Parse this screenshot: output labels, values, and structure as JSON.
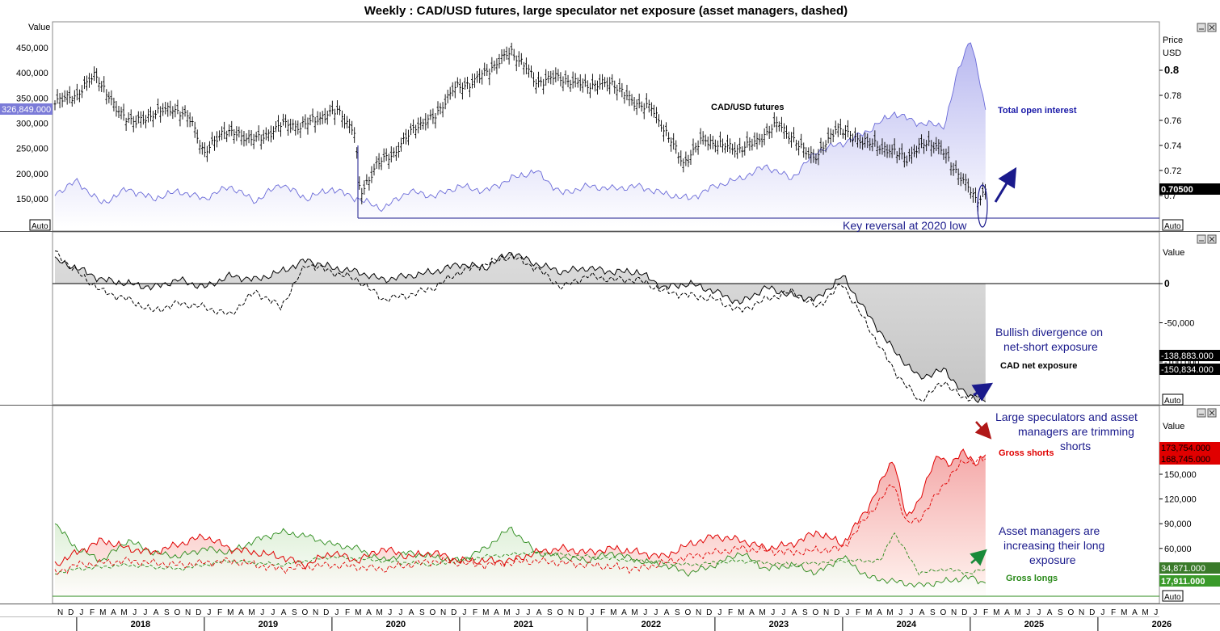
{
  "title": "Weekly : CAD/USD futures, large speculator net exposure (asset managers, dashed)",
  "colors": {
    "price": "#000000",
    "open_interest": "#6a6ad8",
    "open_interest_fill": "#c8c8f4",
    "net_fill": "#c8c8c8",
    "shorts": "#e00000",
    "shorts_fill": "#f7c4c4",
    "longs": "#2a8a1a",
    "longs_fill": "#d8ecd0",
    "annotation": "#1a1a8c",
    "arrow_red": "#b01818",
    "arrow_green": "#1a8a3a",
    "marker_bg": "#7b7bd8"
  },
  "window_icons": [
    "minimize-icon",
    "close-icon"
  ],
  "x_axis": {
    "months": [
      "N",
      "D",
      "J",
      "F",
      "M",
      "A",
      "M",
      "J",
      "J",
      "A",
      "S",
      "O",
      "N",
      "D",
      "J",
      "F",
      "M",
      "A",
      "M",
      "J",
      "J",
      "A",
      "S",
      "O",
      "N",
      "D",
      "J",
      "F",
      "M",
      "A",
      "M",
      "J",
      "J",
      "A",
      "S",
      "O",
      "N",
      "D",
      "J",
      "F",
      "M",
      "A",
      "M",
      "J",
      "J",
      "A",
      "S",
      "O",
      "N",
      "D",
      "J",
      "F",
      "M",
      "A",
      "M",
      "J",
      "J",
      "A",
      "S",
      "O",
      "N",
      "D",
      "J",
      "F",
      "M",
      "A",
      "M",
      "J",
      "J",
      "A",
      "S",
      "O",
      "N",
      "D",
      "J",
      "F",
      "M",
      "A",
      "M",
      "J",
      "J",
      "A",
      "S",
      "O",
      "N",
      "D",
      "J",
      "F",
      "M",
      "A",
      "M",
      "J",
      "J",
      "A",
      "S",
      "O",
      "N",
      "D",
      "J",
      "F",
      "M",
      "A",
      "M",
      "J",
      "J",
      "A",
      "S",
      "O",
      "N",
      "D",
      "J",
      "F",
      "M",
      "A",
      "M",
      "J",
      "J",
      "A",
      "S",
      "O",
      "N",
      "D",
      "J",
      "F",
      "M",
      "A",
      "M",
      "J"
    ],
    "years": [
      "2018",
      "2019",
      "2020",
      "2021",
      "2022",
      "2023",
      "2024",
      "2025",
      "2026"
    ]
  },
  "panel1": {
    "left_axis_title": "Value",
    "left_ticks": [
      "450,000",
      "400,000",
      "350,000",
      "300,000",
      "250,000",
      "200,000",
      "150,000"
    ],
    "left_marker": "326,849.000",
    "right_axis_title_1": "Price",
    "right_axis_title_2": "USD",
    "right_ticks": [
      "0.8",
      "0.78",
      "0.76",
      "0.74",
      "0.72",
      "0.7"
    ],
    "right_marker": "0.70500",
    "auto_left": "Auto",
    "auto_right": "Auto",
    "label_price": "CAD/USD futures",
    "label_oi": "Total open interest",
    "annotation_reversal": "Key reversal at 2020 low"
  },
  "panel2": {
    "right_axis_title": "Value",
    "right_ticks": [
      "0",
      "-50,000",
      "-100,000"
    ],
    "marker_1": "-138,883.000",
    "marker_2": "-150,834.000",
    "auto_right": "Auto",
    "label_net": "CAD net exposure",
    "annotation_1": "Bullish divergence on",
    "annotation_2": "net-short exposure"
  },
  "panel3": {
    "right_axis_title": "Value",
    "right_ticks": [
      "150,000",
      "120,000",
      "90,000",
      "60,000"
    ],
    "marker_shorts_1": "173,754.000",
    "marker_shorts_2": "168,745.000",
    "marker_longs_1": "34,871.000",
    "marker_longs_2": "17,911.000",
    "auto_right": "Auto",
    "label_shorts": "Gross shorts",
    "label_longs": "Gross longs",
    "annotation_shorts_1": "Large speculators and asset",
    "annotation_shorts_2": "managers are trimming",
    "annotation_shorts_3": "shorts",
    "annotation_longs_1": "Asset managers are",
    "annotation_longs_2": "increasing their long",
    "annotation_longs_3": "exposure"
  },
  "chart_data": [
    {
      "type": "line",
      "title": "Weekly : CAD/USD futures, large speculator net exposure (asset managers, dashed)",
      "ylabel": "Price USD",
      "ylim": [
        0.69,
        0.81
      ],
      "series": [
        {
          "name": "CAD/USD futures",
          "style": "ohlc",
          "x": [
            2017.83,
            2018.0,
            2018.15,
            2018.3,
            2018.45,
            2018.6,
            2018.75,
            2018.9,
            2019.0,
            2019.15,
            2019.3,
            2019.45,
            2019.6,
            2019.75,
            2019.9,
            2020.05,
            2020.18,
            2020.22,
            2020.35,
            2020.5,
            2020.65,
            2020.8,
            2020.95,
            2021.1,
            2021.25,
            2021.4,
            2021.5,
            2021.6,
            2021.75,
            2021.9,
            2022.05,
            2022.2,
            2022.35,
            2022.5,
            2022.65,
            2022.75,
            2022.9,
            2023.05,
            2023.2,
            2023.35,
            2023.5,
            2023.65,
            2023.8,
            2023.95,
            2024.05,
            2024.2,
            2024.35,
            2024.5,
            2024.65,
            2024.75,
            2024.85,
            2024.95,
            2025.05,
            2025.12
          ],
          "values": [
            0.775,
            0.78,
            0.797,
            0.77,
            0.758,
            0.765,
            0.77,
            0.76,
            0.733,
            0.752,
            0.747,
            0.745,
            0.757,
            0.755,
            0.762,
            0.768,
            0.75,
            0.7,
            0.725,
            0.735,
            0.755,
            0.762,
            0.785,
            0.79,
            0.802,
            0.815,
            0.805,
            0.79,
            0.795,
            0.79,
            0.788,
            0.79,
            0.775,
            0.77,
            0.745,
            0.725,
            0.745,
            0.74,
            0.737,
            0.745,
            0.758,
            0.74,
            0.73,
            0.755,
            0.748,
            0.742,
            0.737,
            0.73,
            0.742,
            0.74,
            0.725,
            0.712,
            0.695,
            0.705
          ]
        },
        {
          "name": "Total open interest",
          "x": [
            2017.83,
            2018.0,
            2018.2,
            2018.4,
            2018.6,
            2018.8,
            2019.0,
            2019.2,
            2019.4,
            2019.6,
            2019.8,
            2020.0,
            2020.2,
            2020.4,
            2020.6,
            2020.8,
            2021.0,
            2021.2,
            2021.4,
            2021.6,
            2021.8,
            2022.0,
            2022.2,
            2022.4,
            2022.6,
            2022.8,
            2023.0,
            2023.2,
            2023.4,
            2023.6,
            2023.8,
            2024.0,
            2024.2,
            2024.4,
            2024.6,
            2024.8,
            2024.9,
            2025.0,
            2025.12
          ],
          "values": [
            160000,
            185000,
            140000,
            170000,
            150000,
            165000,
            150000,
            175000,
            145000,
            180000,
            150000,
            170000,
            150000,
            130000,
            165000,
            155000,
            175000,
            165000,
            190000,
            205000,
            160000,
            175000,
            170000,
            175000,
            160000,
            150000,
            175000,
            190000,
            215000,
            190000,
            245000,
            260000,
            285000,
            320000,
            300000,
            295000,
            400000,
            470000,
            326849
          ]
        }
      ]
    },
    {
      "type": "area",
      "title": "CAD net exposure",
      "ylabel": "Value",
      "ylim": [
        -170000,
        60000
      ],
      "series": [
        {
          "name": "CAD net exposure",
          "x": [
            2017.83,
            2018.0,
            2018.2,
            2018.4,
            2018.6,
            2018.8,
            2019.0,
            2019.2,
            2019.4,
            2019.6,
            2019.8,
            2020.0,
            2020.2,
            2020.4,
            2020.6,
            2020.8,
            2021.0,
            2021.2,
            2021.4,
            2021.6,
            2021.8,
            2022.0,
            2022.2,
            2022.4,
            2022.6,
            2022.8,
            2023.0,
            2023.2,
            2023.4,
            2023.6,
            2023.8,
            2024.0,
            2024.2,
            2024.4,
            2024.6,
            2024.8,
            2024.95,
            2025.12
          ],
          "values": [
            40000,
            15000,
            -10000,
            -20000,
            -35000,
            -25000,
            -30000,
            -40000,
            -10000,
            -30000,
            25000,
            15000,
            5000,
            -20000,
            -15000,
            -5000,
            15000,
            25000,
            35000,
            20000,
            -5000,
            10000,
            5000,
            5000,
            -10000,
            -15000,
            -20000,
            -35000,
            -20000,
            -10000,
            -30000,
            0,
            -55000,
            -110000,
            -150000,
            -125000,
            -148000,
            -138883
          ]
        },
        {
          "name": "Asset managers",
          "style": "dashed",
          "x": [
            2017.83,
            2018.0,
            2018.2,
            2018.4,
            2018.6,
            2018.8,
            2019.0,
            2019.2,
            2019.4,
            2019.6,
            2019.8,
            2020.0,
            2020.2,
            2020.4,
            2020.6,
            2020.8,
            2021.0,
            2021.2,
            2021.4,
            2021.6,
            2021.8,
            2022.0,
            2022.2,
            2022.4,
            2022.6,
            2022.8,
            2023.0,
            2023.2,
            2023.4,
            2023.6,
            2023.8,
            2024.0,
            2024.2,
            2024.4,
            2024.6,
            2024.8,
            2024.95,
            2025.12
          ],
          "values": [
            30000,
            20000,
            5000,
            0,
            -5000,
            5000,
            -5000,
            10000,
            5000,
            15000,
            30000,
            20000,
            15000,
            5000,
            10000,
            15000,
            25000,
            20000,
            40000,
            25000,
            15000,
            20000,
            15000,
            15000,
            -5000,
            0,
            -10000,
            -25000,
            -5000,
            -15000,
            -20000,
            10000,
            -40000,
            -85000,
            -120000,
            -110000,
            -140000,
            -150834
          ]
        }
      ]
    },
    {
      "type": "area",
      "title": "Gross shorts / Gross longs",
      "ylabel": "Value",
      "ylim": [
        0,
        190000
      ],
      "series": [
        {
          "name": "Gross shorts",
          "x": [
            2017.83,
            2018.0,
            2018.2,
            2018.4,
            2018.6,
            2018.8,
            2019.0,
            2019.2,
            2019.4,
            2019.6,
            2019.8,
            2020.0,
            2020.2,
            2020.4,
            2020.6,
            2020.8,
            2021.0,
            2021.2,
            2021.4,
            2021.6,
            2021.8,
            2022.0,
            2022.2,
            2022.4,
            2022.6,
            2022.8,
            2023.0,
            2023.2,
            2023.4,
            2023.6,
            2023.8,
            2024.0,
            2024.2,
            2024.4,
            2024.5,
            2024.6,
            2024.75,
            2024.85,
            2024.95,
            2025.05,
            2025.12
          ],
          "values": [
            40000,
            55000,
            70000,
            60000,
            55000,
            65000,
            75000,
            60000,
            55000,
            50000,
            40000,
            55000,
            45000,
            60000,
            50000,
            55000,
            45000,
            45000,
            45000,
            55000,
            60000,
            55000,
            60000,
            55000,
            50000,
            65000,
            75000,
            70000,
            60000,
            65000,
            80000,
            65000,
            110000,
            170000,
            95000,
            120000,
            175000,
            160000,
            180000,
            160000,
            173754
          ]
        },
        {
          "name": "Asset managers (shorts)",
          "style": "dashed",
          "x": [
            2017.83,
            2018.0,
            2018.4,
            2018.8,
            2019.2,
            2019.6,
            2020.0,
            2020.4,
            2020.8,
            2021.2,
            2021.6,
            2022.0,
            2022.4,
            2022.8,
            2023.2,
            2023.6,
            2024.0,
            2024.4,
            2024.5,
            2024.6,
            2024.85,
            2024.95,
            2025.12
          ],
          "values": [
            30000,
            40000,
            45000,
            40000,
            45000,
            35000,
            40000,
            35000,
            45000,
            40000,
            45000,
            40000,
            35000,
            50000,
            60000,
            55000,
            60000,
            140000,
            90000,
            95000,
            150000,
            165000,
            168745
          ]
        },
        {
          "name": "Gross longs",
          "x": [
            2017.83,
            2018.0,
            2018.2,
            2018.4,
            2018.6,
            2018.8,
            2019.0,
            2019.2,
            2019.4,
            2019.6,
            2019.8,
            2020.0,
            2020.2,
            2020.4,
            2020.6,
            2020.8,
            2021.0,
            2021.2,
            2021.4,
            2021.6,
            2021.8,
            2022.0,
            2022.2,
            2022.4,
            2022.6,
            2022.8,
            2023.0,
            2023.2,
            2023.4,
            2023.6,
            2023.8,
            2024.0,
            2024.2,
            2024.4,
            2024.6,
            2024.8,
            2025.0,
            2025.12
          ],
          "values": [
            90000,
            60000,
            45000,
            70000,
            55000,
            50000,
            60000,
            55000,
            70000,
            80000,
            75000,
            65000,
            60000,
            45000,
            55000,
            50000,
            45000,
            60000,
            85000,
            55000,
            50000,
            45000,
            55000,
            45000,
            40000,
            30000,
            40000,
            55000,
            35000,
            40000,
            30000,
            50000,
            25000,
            20000,
            15000,
            20000,
            25000,
            17911
          ]
        },
        {
          "name": "Asset managers (longs)",
          "style": "dashed",
          "x": [
            2017.83,
            2018.0,
            2018.4,
            2018.8,
            2019.2,
            2019.6,
            2020.0,
            2020.4,
            2020.8,
            2021.2,
            2021.6,
            2022.0,
            2022.4,
            2022.8,
            2023.2,
            2023.6,
            2024.0,
            2024.3,
            2024.4,
            2024.6,
            2024.8,
            2025.0,
            2025.12
          ],
          "values": [
            30000,
            35000,
            40000,
            35000,
            45000,
            40000,
            50000,
            45000,
            40000,
            50000,
            55000,
            50000,
            45000,
            40000,
            45000,
            40000,
            45000,
            45000,
            80000,
            30000,
            35000,
            30000,
            34871
          ]
        }
      ]
    }
  ]
}
